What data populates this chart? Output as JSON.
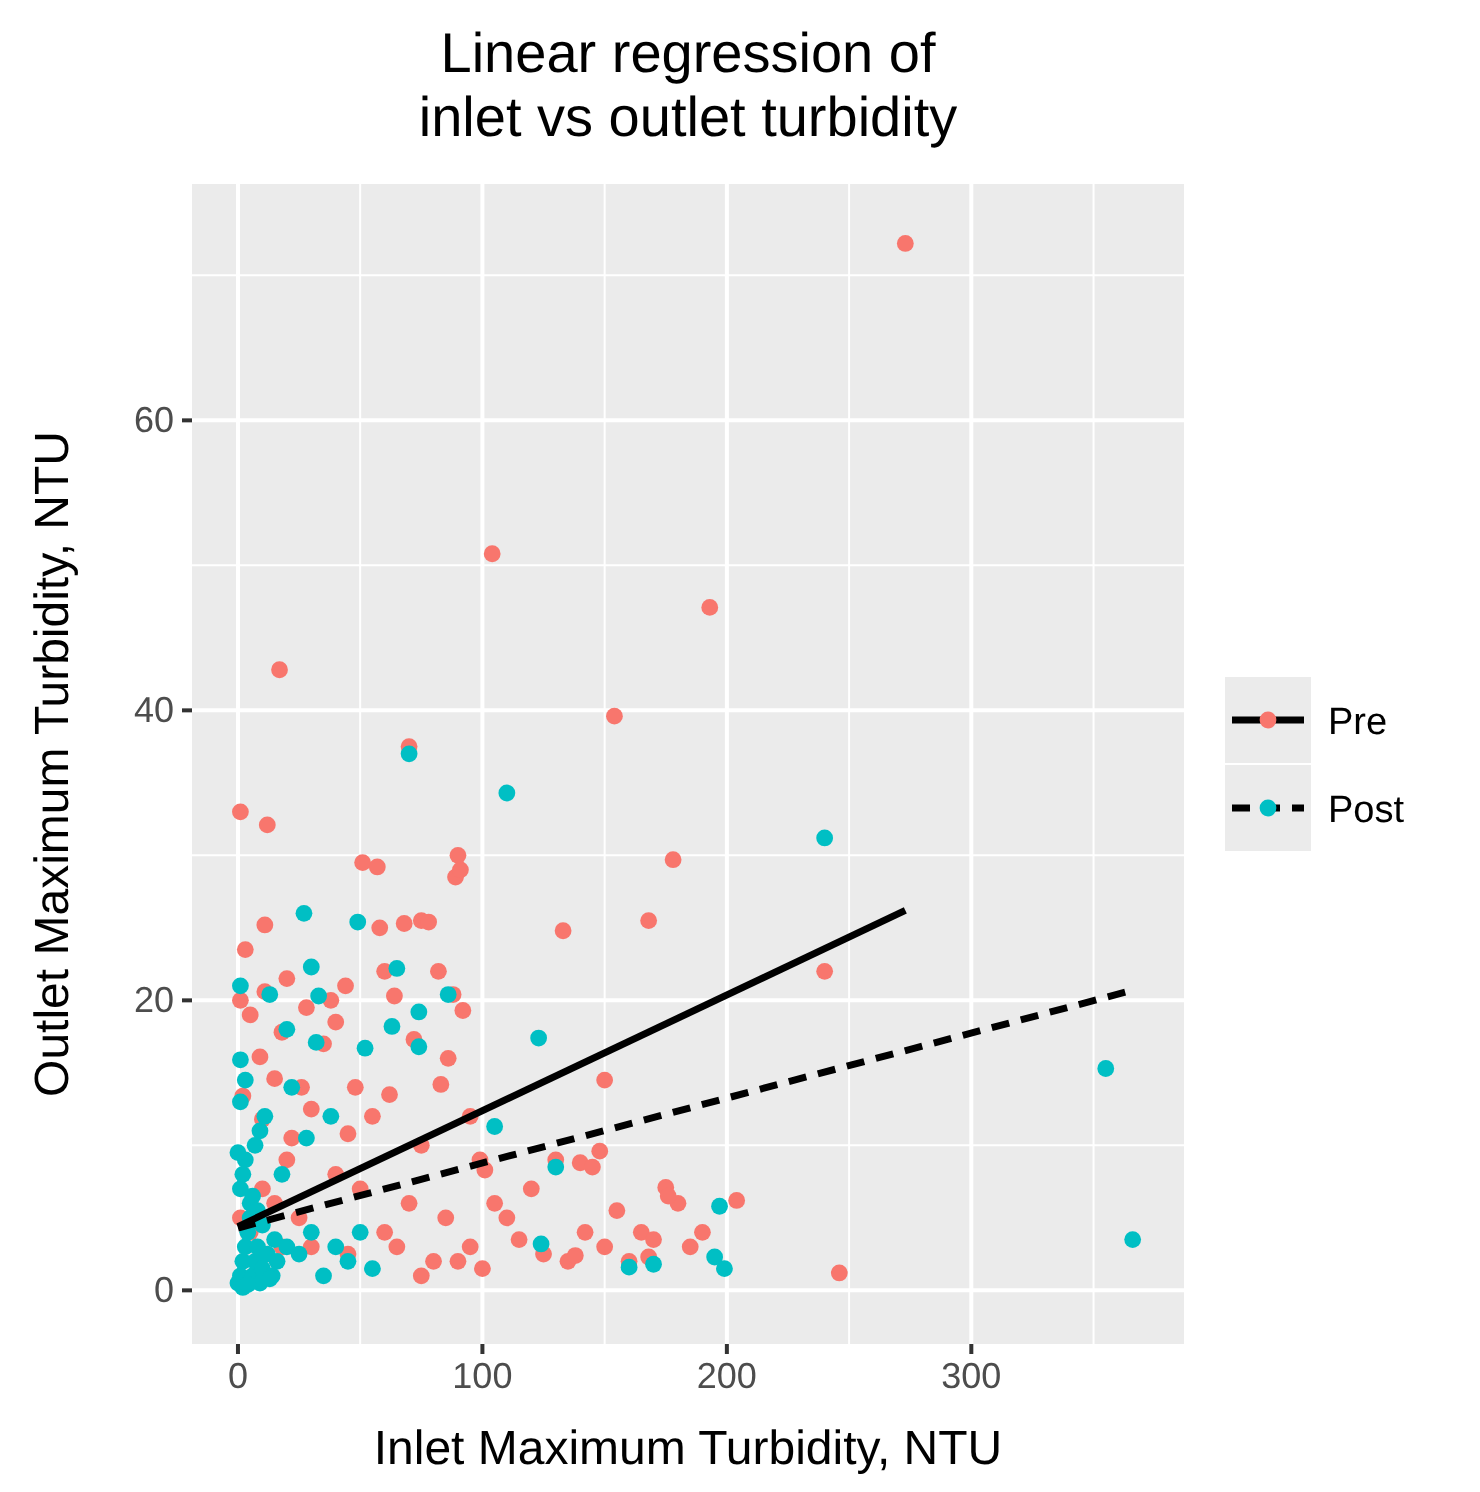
{
  "chart_data": {
    "type": "scatter",
    "title": "Linear regression of\ninlet vs outlet turbidity",
    "xlabel": "Inlet Maximum Turbidity, NTU",
    "ylabel": "Outlet Maximum Turbidity, NTU",
    "xlim": [
      -18.8,
      387
    ],
    "ylim": [
      -3.7,
      76.3
    ],
    "xticks": [
      0,
      100,
      200,
      300
    ],
    "yticks": [
      0,
      20,
      40,
      60
    ],
    "grid": true,
    "legend": "right",
    "marker": "circle",
    "series": [
      {
        "name": "Pre",
        "color": "#f8766d",
        "x": [
          273,
          104,
          17,
          154,
          193,
          178,
          133,
          168,
          240,
          204,
          246,
          1,
          12,
          70,
          90,
          89,
          91,
          51,
          57,
          75,
          78,
          58,
          68,
          11,
          3,
          20,
          38,
          82,
          64,
          88,
          92,
          11,
          28,
          44,
          60,
          40,
          1,
          5,
          18,
          35,
          72,
          86,
          9,
          15,
          26,
          48,
          62,
          83,
          95,
          2,
          30,
          55,
          10,
          22,
          45,
          75,
          99,
          101,
          120,
          130,
          140,
          145,
          155,
          165,
          170,
          175,
          110,
          115,
          125,
          135,
          150,
          160,
          180,
          185,
          190,
          142,
          105,
          95,
          85,
          80,
          70,
          60,
          50,
          40,
          30,
          25,
          20,
          15,
          10,
          5,
          1,
          18,
          45,
          65,
          75,
          90,
          100,
          150,
          148,
          176,
          138,
          168
        ],
        "values": [
          72.2,
          50.8,
          42.8,
          39.6,
          47.1,
          29.7,
          24.8,
          25.5,
          22.0,
          6.2,
          1.2,
          33,
          32.1,
          37.5,
          30,
          28.5,
          29,
          29.5,
          29.2,
          25.5,
          25.4,
          25,
          25.3,
          25.2,
          23.5,
          21.5,
          20,
          22,
          20.3,
          20.4,
          19.3,
          20.6,
          19.5,
          21,
          22,
          18.5,
          20,
          19,
          17.8,
          17,
          17.3,
          16,
          16.1,
          14.6,
          14,
          14,
          13.5,
          14.2,
          12,
          13.4,
          12.5,
          12,
          11.8,
          10.5,
          10.8,
          10,
          9,
          8.3,
          7,
          9,
          8.8,
          8.5,
          5.5,
          4,
          3.5,
          7.1,
          5,
          3.5,
          2.5,
          2,
          3,
          2,
          6,
          3,
          4,
          4,
          6,
          3,
          5,
          2,
          6,
          4,
          7,
          8,
          3,
          5,
          9,
          6,
          7,
          4,
          5,
          3,
          2.5,
          3,
          1,
          2,
          1.5,
          14.5,
          9.6,
          6.5,
          2.4,
          2.3
        ]
      },
      {
        "name": "Post",
        "color": "#00bfc4",
        "x": [
          70,
          110,
          240,
          355,
          366,
          27,
          49,
          1,
          13,
          33,
          30,
          65,
          86,
          74,
          63,
          74,
          20,
          32,
          1,
          52,
          123,
          105,
          197,
          195,
          199,
          160,
          170,
          124,
          130,
          0,
          1,
          2,
          3,
          4,
          5,
          6,
          7,
          8,
          9,
          10,
          12,
          14,
          15,
          1,
          2,
          3,
          5,
          7,
          9,
          11,
          2,
          4,
          6,
          8,
          10,
          13,
          16,
          20,
          25,
          30,
          35,
          40,
          45,
          50,
          55,
          22,
          28,
          38,
          18,
          1,
          3,
          0
        ],
        "values": [
          37,
          34.3,
          31.2,
          15.3,
          3.5,
          26,
          25.4,
          21,
          20.4,
          20.3,
          22.3,
          22.2,
          20.4,
          19.2,
          18.2,
          16.8,
          18,
          17.1,
          15.9,
          16.7,
          17.4,
          11.3,
          5.8,
          2.3,
          1.5,
          1.6,
          1.8,
          3.2,
          8.5,
          0.5,
          1,
          2,
          3,
          4,
          5,
          1,
          2,
          3,
          0.5,
          1.5,
          2.5,
          1,
          3.5,
          7,
          8,
          9,
          6,
          10,
          11,
          12,
          0.2,
          0.4,
          6.5,
          5.5,
          4.5,
          0.8,
          2,
          3,
          2.5,
          4,
          1,
          3,
          2,
          4,
          1.5,
          14,
          10.5,
          12,
          8,
          13,
          14.5,
          9.5
        ]
      },
      {
        "type": "line",
        "marker": "none",
        "color": "#000000",
        "line_style": "solid",
        "x": [
          0,
          273
        ],
        "values": [
          4.4,
          26.2
        ]
      },
      {
        "type": "line",
        "marker": "none",
        "color": "#000000",
        "line_style": "dashed",
        "x": [
          0,
          366
        ],
        "values": [
          4.3,
          20.7
        ]
      }
    ]
  }
}
